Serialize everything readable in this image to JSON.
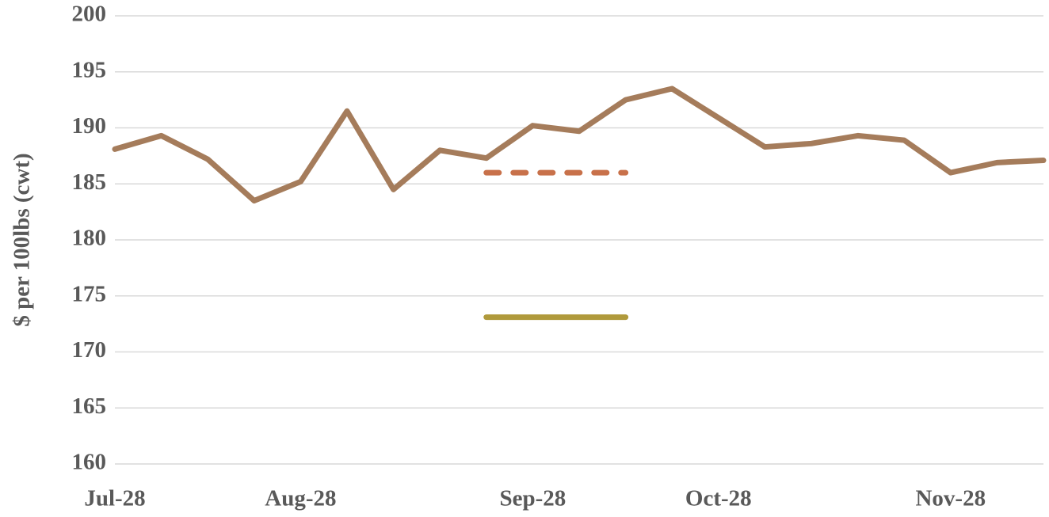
{
  "chart_data": {
    "type": "line",
    "y_label": "$ per 100lbs (cwt)",
    "categories": [
      "Jul-28",
      null,
      null,
      null,
      "Aug-28",
      null,
      null,
      null,
      null,
      "Sep-28",
      null,
      null,
      null,
      "Oct-28",
      null,
      null,
      null,
      null,
      "Nov-28",
      null,
      null
    ],
    "series": [
      {
        "color": "#a57c5b",
        "dash": false,
        "values": [
          188.1,
          189.3,
          187.2,
          183.5,
          185.2,
          191.5,
          184.5,
          188.0,
          187.3,
          190.2,
          189.7,
          192.5,
          193.5,
          190.9,
          188.3,
          188.6,
          189.3,
          188.9,
          186.0,
          186.9,
          187.1
        ]
      },
      {
        "color": "#c8714a",
        "dash": true,
        "values": [
          null,
          null,
          null,
          null,
          null,
          null,
          null,
          null,
          186.0,
          186.0,
          186.0,
          186.0,
          null,
          null,
          null,
          null,
          null,
          null,
          null,
          null,
          null
        ]
      },
      {
        "color": "#b09a3c",
        "dash": false,
        "values": [
          null,
          null,
          null,
          null,
          null,
          null,
          null,
          null,
          173.1,
          173.1,
          173.1,
          173.1,
          null,
          null,
          null,
          null,
          null,
          null,
          null,
          null,
          null
        ]
      }
    ],
    "ylim": [
      160,
      200
    ],
    "yticks": [
      160,
      165,
      170,
      175,
      180,
      185,
      190,
      195,
      200
    ],
    "grid": true
  }
}
